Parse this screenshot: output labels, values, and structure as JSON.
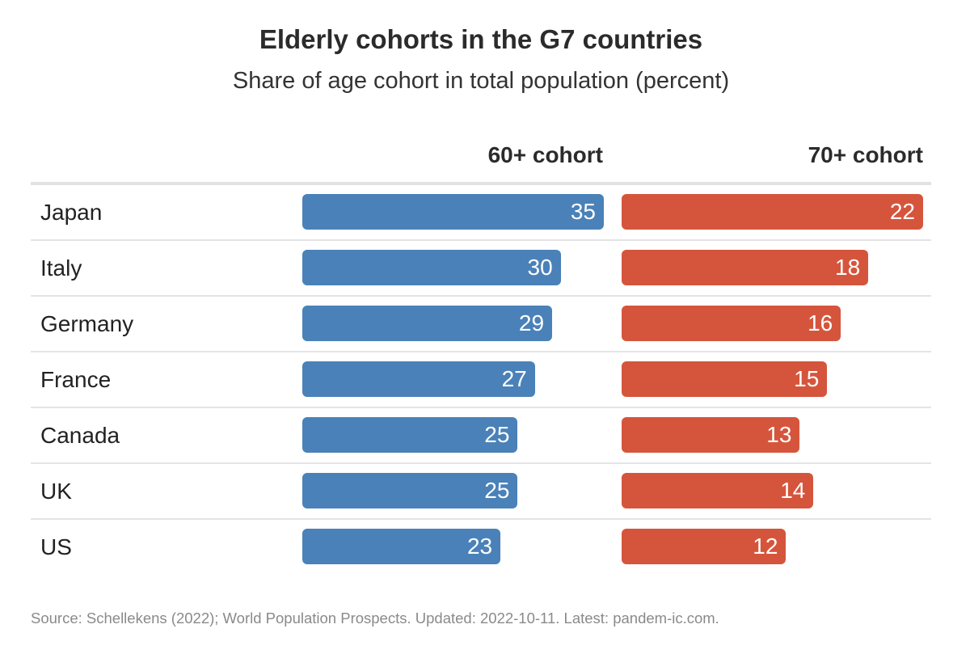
{
  "chart_data": {
    "type": "bar",
    "orientation": "horizontal",
    "title": "Elderly cohorts in the G7 countries",
    "subtitle": "Share of age cohort in total population (percent)",
    "categories": [
      "Japan",
      "Italy",
      "Germany",
      "France",
      "Canada",
      "UK",
      "US"
    ],
    "series": [
      {
        "name": "60+ cohort",
        "color": "#4a81b8",
        "values": [
          35,
          30,
          29,
          27,
          25,
          25,
          23
        ]
      },
      {
        "name": "70+ cohort",
        "color": "#d5553c",
        "values": [
          22,
          18,
          16,
          15,
          13,
          14,
          12
        ]
      }
    ],
    "grid": false,
    "legend": "none"
  },
  "footer": {
    "source": "Source: Schellekens (2022); World Population Prospects. Updated: 2022-10-11. Latest: pandem-ic.com."
  }
}
